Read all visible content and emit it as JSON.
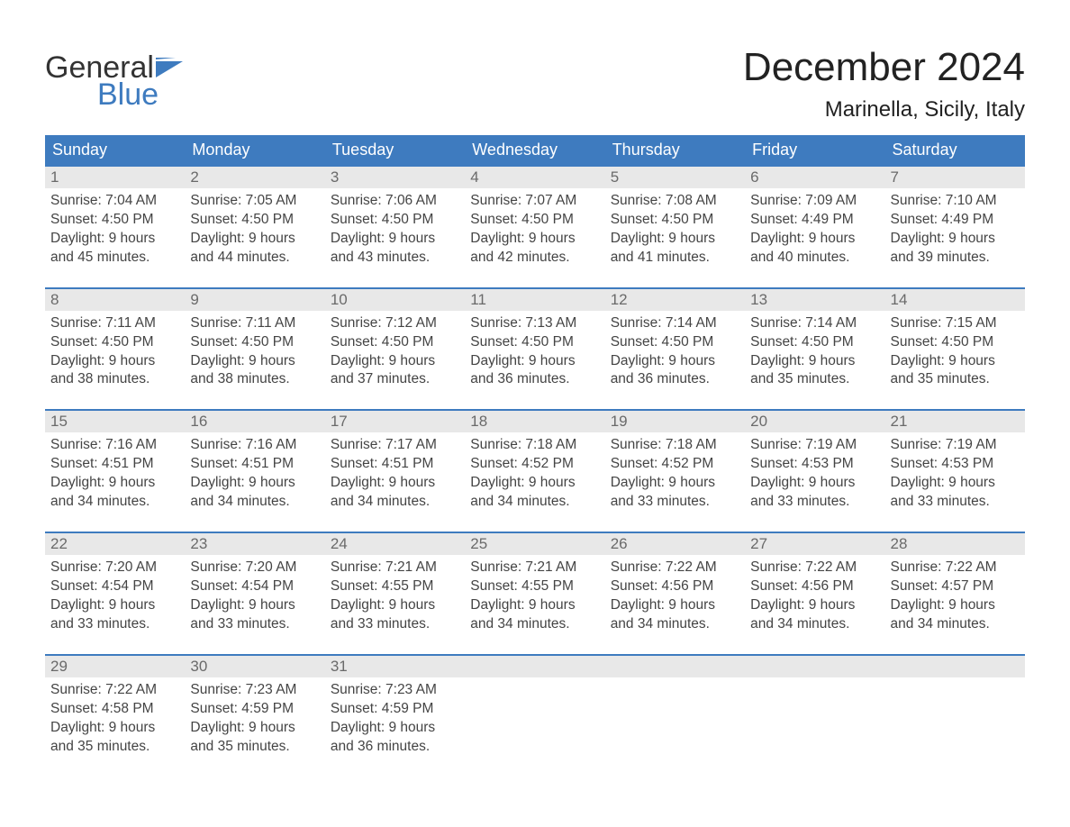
{
  "brand": {
    "word1": "General",
    "word2": "Blue",
    "icon": "flag-icon"
  },
  "colors": {
    "brand_blue": "#3e7bbf",
    "header_blue": "#3e7bbf",
    "row_separator": "#3e7bbf",
    "daynum_bg": "#e8e8e8",
    "background": "#ffffff",
    "text_dark": "#2b2b2b",
    "text_mid": "#444444"
  },
  "typography": {
    "month_title_pt": 44,
    "location_pt": 24,
    "dayheader_pt": 18,
    "daynum_pt": 17,
    "body_pt": 15.5,
    "font_family": "Arial"
  },
  "title": {
    "month": "December 2024",
    "location": "Marinella, Sicily, Italy"
  },
  "day_headers": [
    "Sunday",
    "Monday",
    "Tuesday",
    "Wednesday",
    "Thursday",
    "Friday",
    "Saturday"
  ],
  "labels": {
    "sunrise": "Sunrise:",
    "sunset": "Sunset:",
    "daylight_prefix": "Daylight:"
  },
  "weeks": [
    [
      {
        "n": "1",
        "sunrise": "7:04 AM",
        "sunset": "4:50 PM",
        "daylight1": "Daylight: 9 hours",
        "daylight2": "and 45 minutes."
      },
      {
        "n": "2",
        "sunrise": "7:05 AM",
        "sunset": "4:50 PM",
        "daylight1": "Daylight: 9 hours",
        "daylight2": "and 44 minutes."
      },
      {
        "n": "3",
        "sunrise": "7:06 AM",
        "sunset": "4:50 PM",
        "daylight1": "Daylight: 9 hours",
        "daylight2": "and 43 minutes."
      },
      {
        "n": "4",
        "sunrise": "7:07 AM",
        "sunset": "4:50 PM",
        "daylight1": "Daylight: 9 hours",
        "daylight2": "and 42 minutes."
      },
      {
        "n": "5",
        "sunrise": "7:08 AM",
        "sunset": "4:50 PM",
        "daylight1": "Daylight: 9 hours",
        "daylight2": "and 41 minutes."
      },
      {
        "n": "6",
        "sunrise": "7:09 AM",
        "sunset": "4:49 PM",
        "daylight1": "Daylight: 9 hours",
        "daylight2": "and 40 minutes."
      },
      {
        "n": "7",
        "sunrise": "7:10 AM",
        "sunset": "4:49 PM",
        "daylight1": "Daylight: 9 hours",
        "daylight2": "and 39 minutes."
      }
    ],
    [
      {
        "n": "8",
        "sunrise": "7:11 AM",
        "sunset": "4:50 PM",
        "daylight1": "Daylight: 9 hours",
        "daylight2": "and 38 minutes."
      },
      {
        "n": "9",
        "sunrise": "7:11 AM",
        "sunset": "4:50 PM",
        "daylight1": "Daylight: 9 hours",
        "daylight2": "and 38 minutes."
      },
      {
        "n": "10",
        "sunrise": "7:12 AM",
        "sunset": "4:50 PM",
        "daylight1": "Daylight: 9 hours",
        "daylight2": "and 37 minutes."
      },
      {
        "n": "11",
        "sunrise": "7:13 AM",
        "sunset": "4:50 PM",
        "daylight1": "Daylight: 9 hours",
        "daylight2": "and 36 minutes."
      },
      {
        "n": "12",
        "sunrise": "7:14 AM",
        "sunset": "4:50 PM",
        "daylight1": "Daylight: 9 hours",
        "daylight2": "and 36 minutes."
      },
      {
        "n": "13",
        "sunrise": "7:14 AM",
        "sunset": "4:50 PM",
        "daylight1": "Daylight: 9 hours",
        "daylight2": "and 35 minutes."
      },
      {
        "n": "14",
        "sunrise": "7:15 AM",
        "sunset": "4:50 PM",
        "daylight1": "Daylight: 9 hours",
        "daylight2": "and 35 minutes."
      }
    ],
    [
      {
        "n": "15",
        "sunrise": "7:16 AM",
        "sunset": "4:51 PM",
        "daylight1": "Daylight: 9 hours",
        "daylight2": "and 34 minutes."
      },
      {
        "n": "16",
        "sunrise": "7:16 AM",
        "sunset": "4:51 PM",
        "daylight1": "Daylight: 9 hours",
        "daylight2": "and 34 minutes."
      },
      {
        "n": "17",
        "sunrise": "7:17 AM",
        "sunset": "4:51 PM",
        "daylight1": "Daylight: 9 hours",
        "daylight2": "and 34 minutes."
      },
      {
        "n": "18",
        "sunrise": "7:18 AM",
        "sunset": "4:52 PM",
        "daylight1": "Daylight: 9 hours",
        "daylight2": "and 34 minutes."
      },
      {
        "n": "19",
        "sunrise": "7:18 AM",
        "sunset": "4:52 PM",
        "daylight1": "Daylight: 9 hours",
        "daylight2": "and 33 minutes."
      },
      {
        "n": "20",
        "sunrise": "7:19 AM",
        "sunset": "4:53 PM",
        "daylight1": "Daylight: 9 hours",
        "daylight2": "and 33 minutes."
      },
      {
        "n": "21",
        "sunrise": "7:19 AM",
        "sunset": "4:53 PM",
        "daylight1": "Daylight: 9 hours",
        "daylight2": "and 33 minutes."
      }
    ],
    [
      {
        "n": "22",
        "sunrise": "7:20 AM",
        "sunset": "4:54 PM",
        "daylight1": "Daylight: 9 hours",
        "daylight2": "and 33 minutes."
      },
      {
        "n": "23",
        "sunrise": "7:20 AM",
        "sunset": "4:54 PM",
        "daylight1": "Daylight: 9 hours",
        "daylight2": "and 33 minutes."
      },
      {
        "n": "24",
        "sunrise": "7:21 AM",
        "sunset": "4:55 PM",
        "daylight1": "Daylight: 9 hours",
        "daylight2": "and 33 minutes."
      },
      {
        "n": "25",
        "sunrise": "7:21 AM",
        "sunset": "4:55 PM",
        "daylight1": "Daylight: 9 hours",
        "daylight2": "and 34 minutes."
      },
      {
        "n": "26",
        "sunrise": "7:22 AM",
        "sunset": "4:56 PM",
        "daylight1": "Daylight: 9 hours",
        "daylight2": "and 34 minutes."
      },
      {
        "n": "27",
        "sunrise": "7:22 AM",
        "sunset": "4:56 PM",
        "daylight1": "Daylight: 9 hours",
        "daylight2": "and 34 minutes."
      },
      {
        "n": "28",
        "sunrise": "7:22 AM",
        "sunset": "4:57 PM",
        "daylight1": "Daylight: 9 hours",
        "daylight2": "and 34 minutes."
      }
    ],
    [
      {
        "n": "29",
        "sunrise": "7:22 AM",
        "sunset": "4:58 PM",
        "daylight1": "Daylight: 9 hours",
        "daylight2": "and 35 minutes."
      },
      {
        "n": "30",
        "sunrise": "7:23 AM",
        "sunset": "4:59 PM",
        "daylight1": "Daylight: 9 hours",
        "daylight2": "and 35 minutes."
      },
      {
        "n": "31",
        "sunrise": "7:23 AM",
        "sunset": "4:59 PM",
        "daylight1": "Daylight: 9 hours",
        "daylight2": "and 36 minutes."
      },
      null,
      null,
      null,
      null
    ]
  ]
}
